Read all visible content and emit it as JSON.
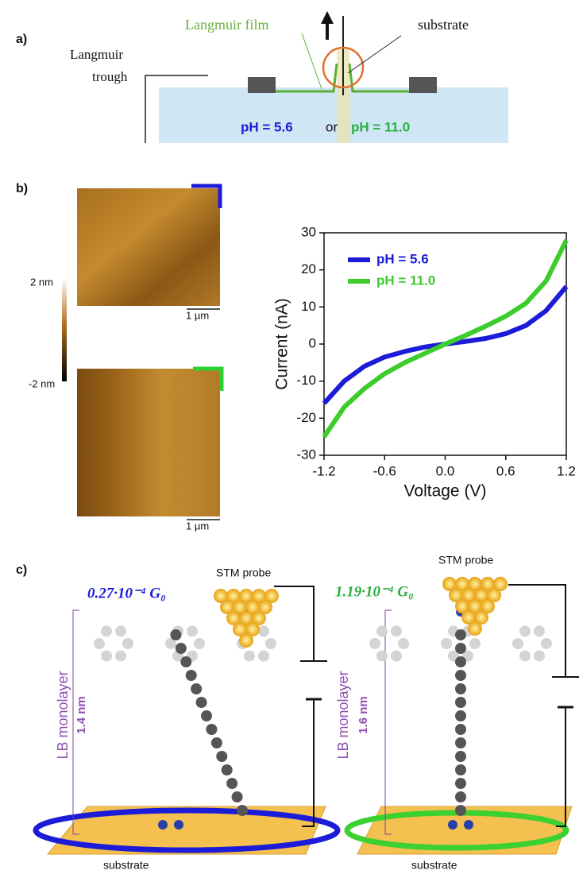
{
  "panel_a": {
    "label": "a)",
    "film": "Langmuir  film",
    "substrate": "substrate",
    "trough_1": "Langmuir",
    "trough_2": "trough",
    "ph_low": "pH = 5.6",
    "or": "or",
    "ph_high": "pH = 11.0"
  },
  "panel_b": {
    "label": "b)",
    "colorbar_max": "2 nm",
    "colorbar_min": "-2 nm",
    "scale_top": "1 µm",
    "scale_bottom": "1 µm"
  },
  "chart_data": {
    "type": "line",
    "x_label": "Voltage (V)",
    "y_label": "Current (nA)",
    "x": [
      -1.2,
      -1.0,
      -0.8,
      -0.6,
      -0.4,
      -0.2,
      0,
      0.2,
      0.4,
      0.6,
      0.8,
      1.0,
      1.2
    ],
    "series": [
      {
        "name": "pH = 5.6",
        "color": "#1c1cd8",
        "values": [
          -16,
          -10,
          -6,
          -3.5,
          -2,
          -0.8,
          0,
          0.7,
          1.5,
          2.8,
          5,
          9,
          15.5
        ]
      },
      {
        "name": "pH = 11.0",
        "color": "#3ccc2c",
        "values": [
          -25,
          -17,
          -12,
          -8,
          -5,
          -2.5,
          0,
          2.3,
          4.8,
          7.5,
          11,
          17,
          28
        ]
      }
    ],
    "xlim": [
      -1.2,
      1.2
    ],
    "xticks": [
      -1.2,
      -0.6,
      {
        "value": 0,
        "label": "0.0"
      },
      0.6,
      1.2
    ],
    "ylim": [
      -30,
      30
    ],
    "yticks": [
      -30,
      -20,
      -10,
      0,
      10,
      20,
      30
    ],
    "legend": "upper left"
  },
  "panel_c": {
    "label": "c)",
    "left": {
      "conductance": "0.27·10⁻⁴ G₀",
      "probe": "STM probe",
      "monolayer": "LB monolayer",
      "height": "1.4 nm",
      "substrate": "substrate"
    },
    "right": {
      "conductance": "1.19·10⁻⁴ G₀",
      "probe": "STM probe",
      "monolayer": "LB monolayer",
      "height": "1.6 nm",
      "substrate": "substrate"
    }
  }
}
